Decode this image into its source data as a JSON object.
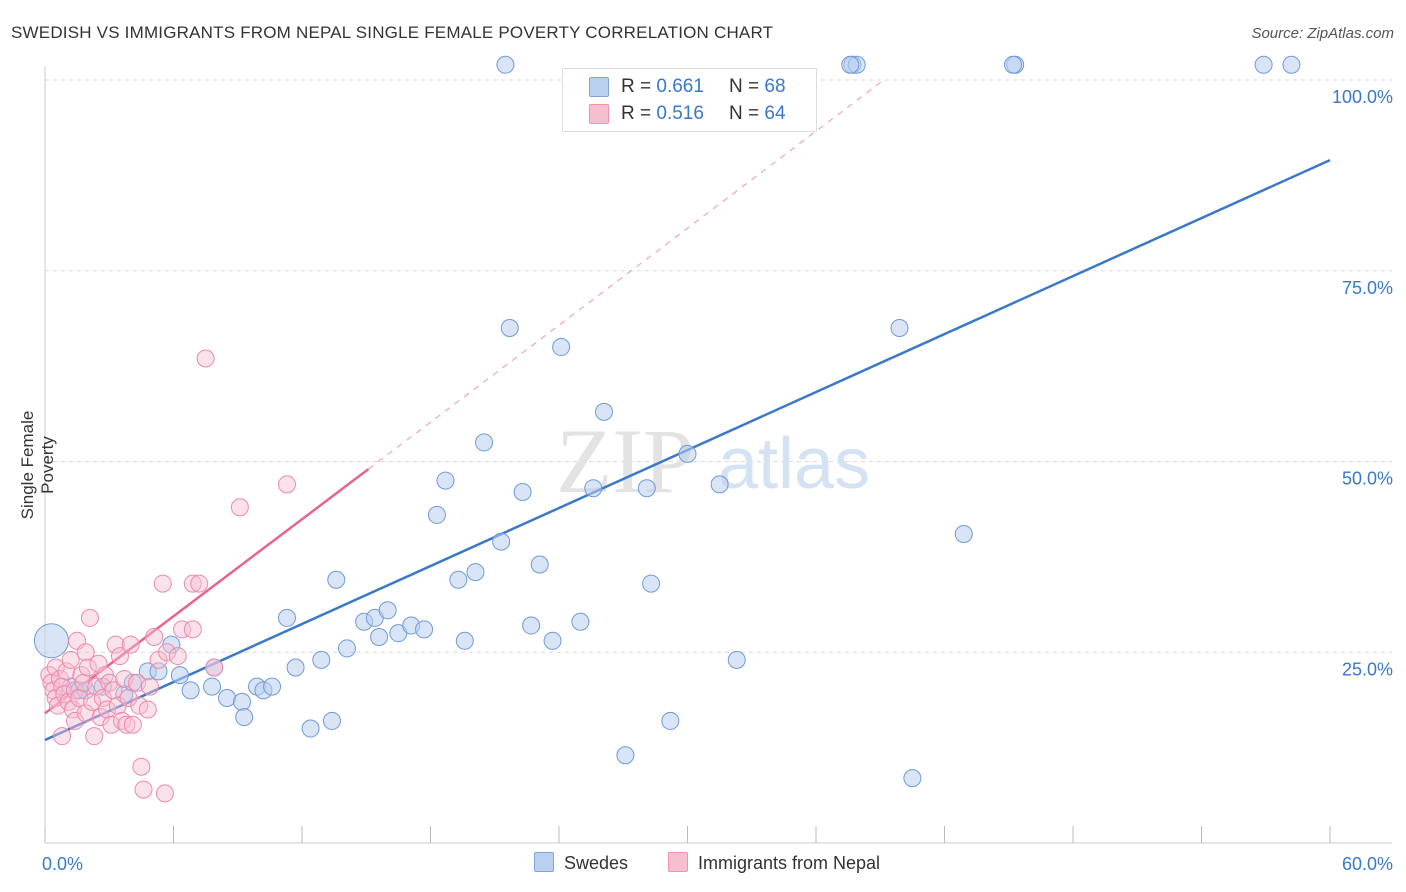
{
  "title": "SWEDISH VS IMMIGRANTS FROM NEPAL SINGLE FEMALE POVERTY CORRELATION CHART",
  "source": "Source: ZipAtlas.com",
  "watermark": {
    "zip": "ZIP",
    "atlas": "atlas"
  },
  "colors": {
    "blue": "#3b78c8",
    "blue_fill": "#b9d0f0",
    "pink": "#e8638f",
    "pink_fill": "#f6bfd0",
    "axis_text": "#3a78c9"
  },
  "legend": [
    {
      "name": "Swedes",
      "r_label": "R = ",
      "r_value": "0.661",
      "n_label": "N = ",
      "n_value": "68"
    },
    {
      "name": "Immigrants from Nepal",
      "r_label": "R = ",
      "r_value": "0.516",
      "n_label": "N = ",
      "n_value": "64"
    }
  ],
  "chart_data": {
    "type": "scatter",
    "title": "SWEDISH VS IMMIGRANTS FROM NEPAL SINGLE FEMALE POVERTY CORRELATION CHART",
    "xlabel": "",
    "ylabel": "Single Female Poverty",
    "xlim": [
      0,
      60
    ],
    "ylim": [
      0,
      105
    ],
    "x_tick_labels": [
      {
        "value": 0,
        "label": "0.0%"
      },
      {
        "value": 60,
        "label": "60.0%"
      }
    ],
    "y_tick_labels": [
      {
        "value": 25,
        "label": "25.0%"
      },
      {
        "value": 50,
        "label": "50.0%"
      },
      {
        "value": 75,
        "label": "75.0%"
      },
      {
        "value": 100,
        "label": "100.0%"
      }
    ],
    "series": [
      {
        "name": "Swedes",
        "r": 0.661,
        "n": 68,
        "trendline": {
          "x1": 0,
          "y1": 13.5,
          "x2": 60,
          "y2": 89.5
        },
        "points": [
          [
            0.3,
            26.5
          ],
          [
            1.2,
            20.5
          ],
          [
            1.6,
            20
          ],
          [
            1.9,
            20
          ],
          [
            2.7,
            20.5
          ],
          [
            3.7,
            19.5
          ],
          [
            4.1,
            21
          ],
          [
            4.8,
            22.5
          ],
          [
            5.3,
            22.5
          ],
          [
            5.9,
            26
          ],
          [
            6.3,
            22
          ],
          [
            6.8,
            20
          ],
          [
            7.9,
            23
          ],
          [
            7.8,
            20.5
          ],
          [
            8.5,
            19
          ],
          [
            9.2,
            18.5
          ],
          [
            9.3,
            16.5
          ],
          [
            9.9,
            20.5
          ],
          [
            10.2,
            20
          ],
          [
            10.6,
            20.5
          ],
          [
            11.3,
            29.5
          ],
          [
            11.7,
            23
          ],
          [
            12.4,
            15
          ],
          [
            12.9,
            24
          ],
          [
            13.4,
            16
          ],
          [
            13.6,
            34.5
          ],
          [
            14.1,
            25.5
          ],
          [
            14.9,
            29
          ],
          [
            15.4,
            29.5
          ],
          [
            15.6,
            27
          ],
          [
            16.0,
            30.5
          ],
          [
            16.5,
            27.5
          ],
          [
            17.1,
            28.5
          ],
          [
            17.7,
            28
          ],
          [
            18.3,
            43
          ],
          [
            18.7,
            47.5
          ],
          [
            19.3,
            34.5
          ],
          [
            19.6,
            26.5
          ],
          [
            20.1,
            35.5
          ],
          [
            20.5,
            52.5
          ],
          [
            21.3,
            39.5
          ],
          [
            21.7,
            67.5
          ],
          [
            22.3,
            46
          ],
          [
            22.7,
            28.5
          ],
          [
            23.1,
            36.5
          ],
          [
            23.7,
            26.5
          ],
          [
            24.1,
            65
          ],
          [
            25.0,
            29
          ],
          [
            26.1,
            56.5
          ],
          [
            25.6,
            46.5
          ],
          [
            27.1,
            11.5
          ],
          [
            28.1,
            46.5
          ],
          [
            28.3,
            34
          ],
          [
            29.2,
            16
          ],
          [
            30.0,
            51
          ],
          [
            31.5,
            47
          ],
          [
            32.3,
            24
          ],
          [
            21.5,
            102
          ],
          [
            37.7,
            102
          ],
          [
            37.9,
            102
          ],
          [
            45.3,
            102
          ],
          [
            58.2,
            102
          ],
          [
            39.9,
            67.5
          ],
          [
            40.5,
            8.5
          ],
          [
            42.9,
            40.5
          ],
          [
            37.6,
            102
          ],
          [
            45.2,
            102
          ],
          [
            56.9,
            102
          ]
        ]
      },
      {
        "name": "Immigrants from Nepal",
        "r": 0.516,
        "n": 64,
        "trendline": {
          "x1": 0,
          "y1": 17,
          "x2": 15.1,
          "y2": 49
        },
        "points": [
          [
            0.2,
            22
          ],
          [
            0.3,
            21
          ],
          [
            0.4,
            20
          ],
          [
            0.5,
            19
          ],
          [
            0.5,
            23
          ],
          [
            0.6,
            18
          ],
          [
            0.7,
            21.5
          ],
          [
            0.8,
            20.5
          ],
          [
            0.9,
            19.5
          ],
          [
            1.0,
            22.5
          ],
          [
            1.1,
            18.5
          ],
          [
            1.2,
            24
          ],
          [
            1.3,
            17.5
          ],
          [
            1.4,
            20
          ],
          [
            1.4,
            16
          ],
          [
            1.5,
            26.5
          ],
          [
            1.6,
            19
          ],
          [
            1.7,
            22
          ],
          [
            1.8,
            21
          ],
          [
            1.9,
            25
          ],
          [
            1.9,
            17
          ],
          [
            2.0,
            23
          ],
          [
            2.1,
            29.5
          ],
          [
            2.2,
            18.5
          ],
          [
            2.3,
            14
          ],
          [
            2.4,
            20.5
          ],
          [
            2.5,
            23.5
          ],
          [
            2.6,
            16.5
          ],
          [
            2.7,
            19
          ],
          [
            2.8,
            22
          ],
          [
            2.9,
            17.5
          ],
          [
            3.0,
            21
          ],
          [
            3.1,
            15.5
          ],
          [
            3.2,
            20
          ],
          [
            3.3,
            26
          ],
          [
            3.4,
            18
          ],
          [
            3.5,
            24.5
          ],
          [
            3.6,
            16
          ],
          [
            3.7,
            21.5
          ],
          [
            3.8,
            15.5
          ],
          [
            3.9,
            19
          ],
          [
            4.0,
            26
          ],
          [
            4.1,
            15.5
          ],
          [
            4.3,
            21
          ],
          [
            4.4,
            18
          ],
          [
            4.5,
            10
          ],
          [
            4.6,
            7
          ],
          [
            4.8,
            17.5
          ],
          [
            4.9,
            20.5
          ],
          [
            5.1,
            27
          ],
          [
            5.3,
            24
          ],
          [
            5.5,
            34
          ],
          [
            5.6,
            6.5
          ],
          [
            5.7,
            25
          ],
          [
            6.2,
            24.5
          ],
          [
            6.4,
            28
          ],
          [
            6.9,
            28
          ],
          [
            6.9,
            34
          ],
          [
            7.2,
            34
          ],
          [
            7.5,
            63.5
          ],
          [
            7.9,
            23
          ],
          [
            9.1,
            44
          ],
          [
            11.3,
            47
          ],
          [
            0.8,
            14
          ]
        ]
      }
    ]
  }
}
